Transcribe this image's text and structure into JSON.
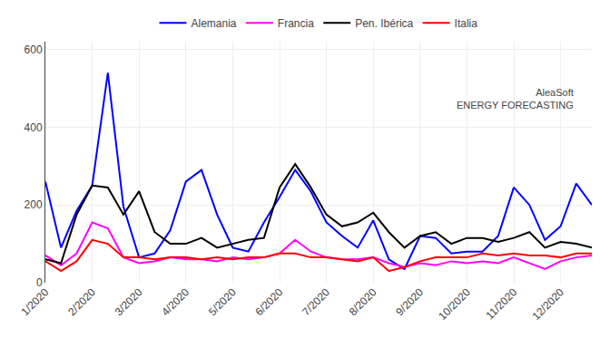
{
  "chart_data": {
    "type": "line",
    "categories": [
      "1/2020",
      null,
      null,
      "2/2020",
      null,
      null,
      "3/2020",
      null,
      null,
      "4/2020",
      null,
      null,
      "5/2020",
      null,
      null,
      "6/2020",
      null,
      null,
      "7/2020",
      null,
      null,
      "8/2020",
      null,
      null,
      "9/2020",
      null,
      null,
      "10/2020",
      null,
      null,
      "11/2020",
      null,
      null,
      "12/2020",
      null,
      null
    ],
    "series": [
      {
        "name": "Alemania",
        "color": "#0000FF",
        "values": [
          260,
          90,
          185,
          250,
          540,
          195,
          65,
          75,
          135,
          260,
          290,
          175,
          90,
          80,
          155,
          220,
          290,
          235,
          155,
          120,
          90,
          160,
          60,
          35,
          120,
          115,
          75,
          80,
          80,
          120,
          245,
          200,
          110,
          145,
          255,
          200
        ]
      },
      {
        "name": "Francia",
        "color": "#FF00FF",
        "values": [
          70,
          45,
          75,
          155,
          140,
          65,
          50,
          55,
          65,
          60,
          60,
          55,
          65,
          60,
          65,
          75,
          110,
          80,
          65,
          60,
          60,
          65,
          50,
          40,
          50,
          45,
          55,
          50,
          55,
          50,
          65,
          50,
          35,
          55,
          65,
          70
        ]
      },
      {
        "name": "Pen. Ibérica",
        "color": "#000000",
        "values": [
          60,
          50,
          175,
          250,
          245,
          175,
          235,
          130,
          100,
          100,
          115,
          90,
          100,
          110,
          115,
          245,
          305,
          245,
          175,
          145,
          155,
          180,
          130,
          90,
          120,
          130,
          100,
          115,
          115,
          105,
          115,
          130,
          90,
          105,
          100,
          90
        ]
      },
      {
        "name": "Italia",
        "color": "#FF0000",
        "values": [
          55,
          30,
          55,
          110,
          100,
          65,
          65,
          60,
          65,
          65,
          60,
          65,
          60,
          65,
          65,
          75,
          75,
          65,
          65,
          60,
          55,
          65,
          30,
          40,
          55,
          65,
          65,
          65,
          75,
          70,
          75,
          70,
          70,
          65,
          75,
          75
        ]
      }
    ],
    "ylim": [
      0,
      620
    ],
    "yticks": [
      0,
      200,
      400,
      600
    ],
    "grid": true,
    "legend": "upper center",
    "annotations": [
      "AleaSoft\nENERGY FORECASTING"
    ]
  }
}
